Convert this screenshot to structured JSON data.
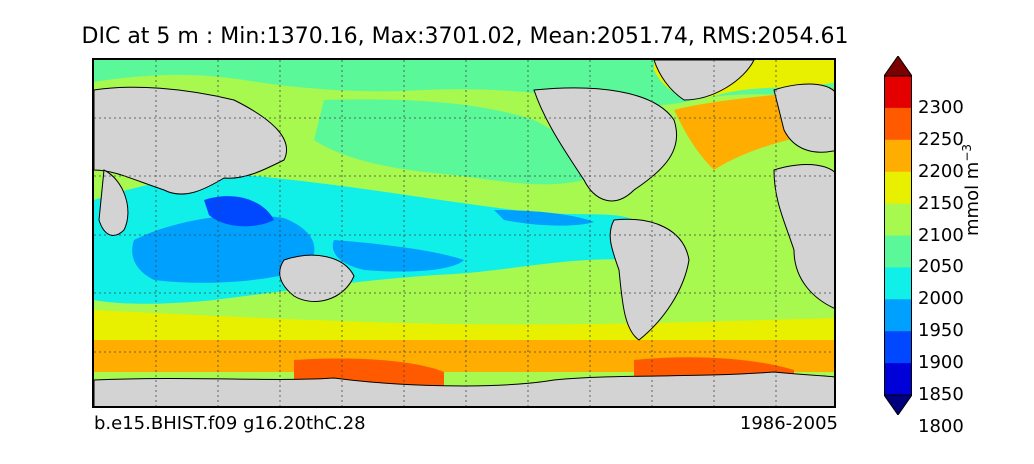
{
  "title": "DIC at 5 m : Min:1370.16, Max:3701.02, Mean:2051.74, RMS:2054.61",
  "footer": {
    "left": "b.e15.BHIST.f09 g16.20thC.28",
    "right": "1986-2005"
  },
  "colorbar": {
    "label": "mmol m",
    "label_exponent": "−3",
    "ticks": [
      "2300",
      "2250",
      "2200",
      "2150",
      "2100",
      "2050",
      "2000",
      "1950",
      "1900",
      "1850",
      "1800"
    ],
    "colors": [
      "#7b0000",
      "#e50000",
      "#ff5a00",
      "#ffad00",
      "#e8f000",
      "#a7f84f",
      "#5bf89a",
      "#10f0e8",
      "#00a0ff",
      "#0048ff",
      "#0000d8",
      "#00007f"
    ]
  },
  "map": {
    "land_color": "#d3d3d3",
    "grid": true
  }
}
